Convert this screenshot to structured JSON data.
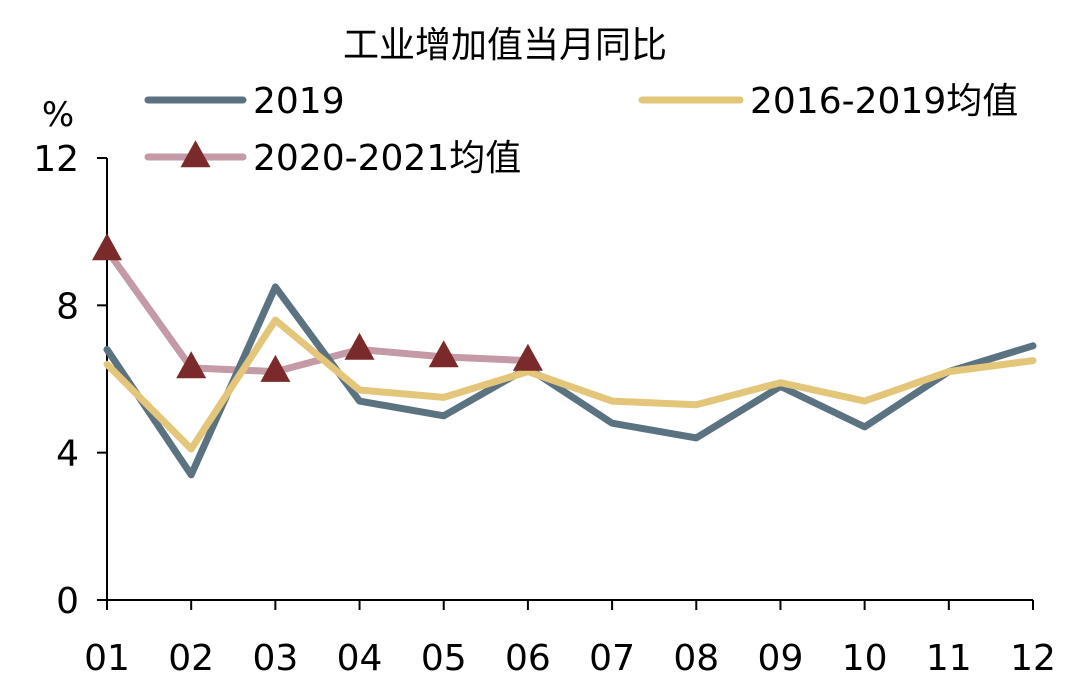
{
  "chart_data": {
    "type": "line",
    "title": "工业增加值当月同比",
    "ylabel": "%",
    "xlabel": "",
    "ylim": [
      0,
      12
    ],
    "yticks": [
      0,
      4,
      8,
      12
    ],
    "categories": [
      "01",
      "02",
      "03",
      "04",
      "05",
      "06",
      "07",
      "08",
      "09",
      "10",
      "11",
      "12"
    ],
    "grid": false,
    "legend_position": "top",
    "series": [
      {
        "name": "2019",
        "color": "#5b7381",
        "marker": "none",
        "values": [
          6.8,
          3.4,
          8.5,
          5.4,
          5.0,
          6.3,
          4.8,
          4.4,
          5.8,
          4.7,
          6.2,
          6.9
        ]
      },
      {
        "name": "2016-2019均值",
        "color": "#e3c67a",
        "marker": "none",
        "values": [
          6.4,
          4.1,
          7.6,
          5.7,
          5.5,
          6.2,
          5.4,
          5.3,
          5.9,
          5.4,
          6.2,
          6.5
        ]
      },
      {
        "name": "2020-2021均值",
        "color": "#c39aa6",
        "marker": "triangle",
        "marker_color": "#7a2a2a",
        "values": [
          9.5,
          6.3,
          6.2,
          6.8,
          6.6,
          6.5,
          null,
          null,
          null,
          null,
          null,
          null
        ]
      }
    ]
  }
}
